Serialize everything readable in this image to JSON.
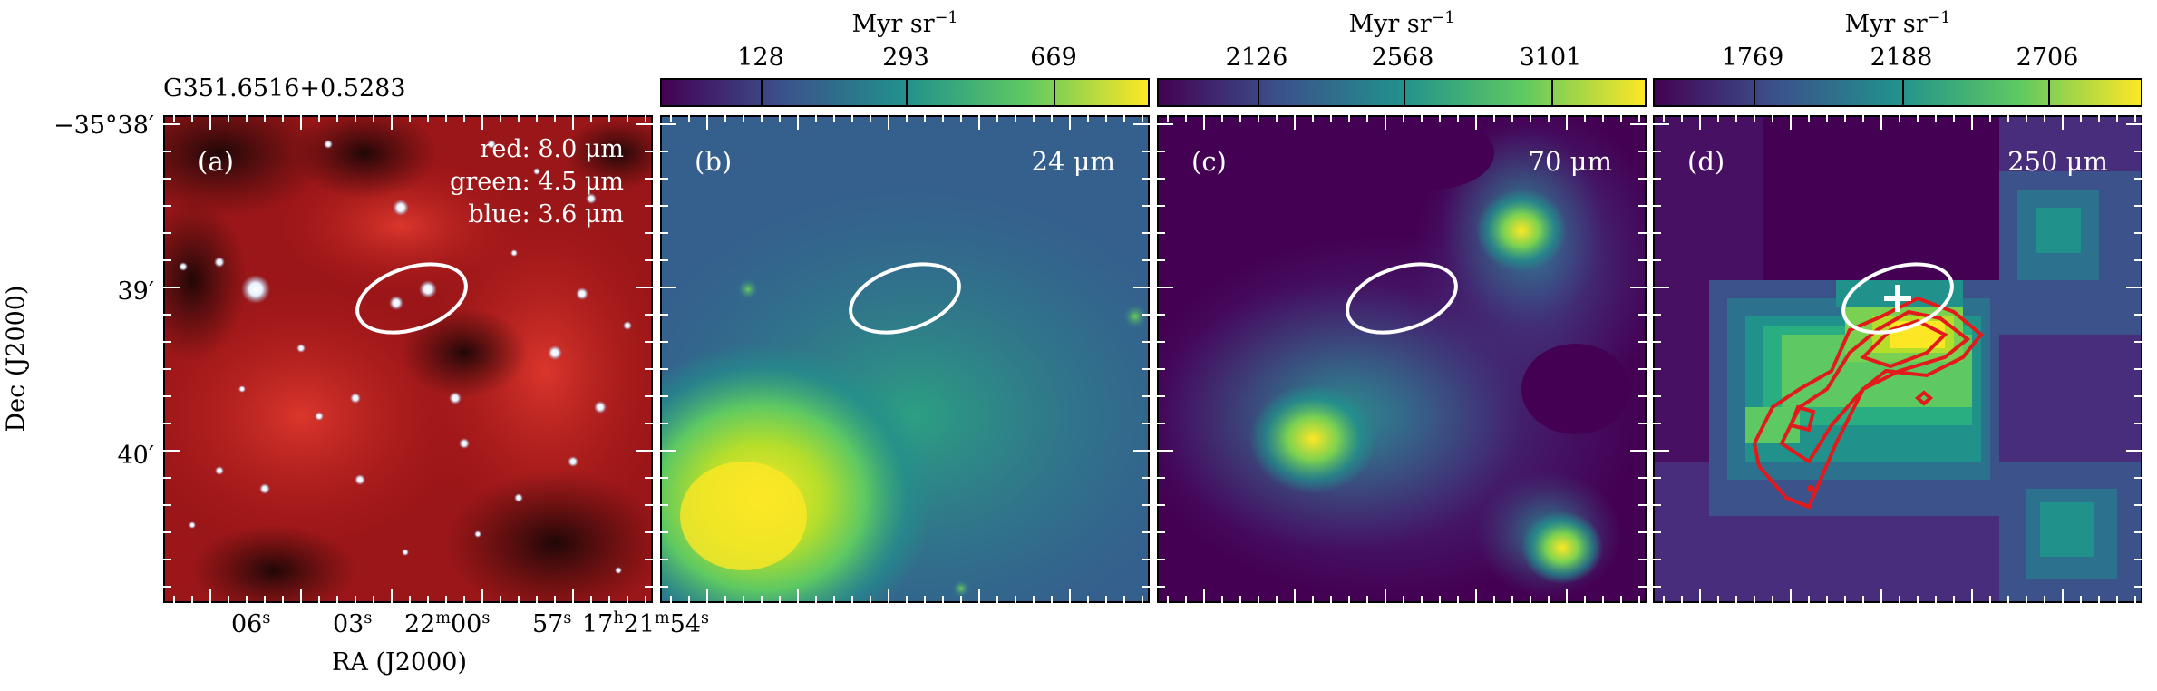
{
  "source_name": "G351.6516+0.5283",
  "axes": {
    "ylabel": "Dec (J2000)",
    "xlabel": "RA (J2000)",
    "yticks": [
      "−35°38′",
      "39′",
      "40′"
    ],
    "xticks": [
      {
        "main": "06",
        "sup": "s"
      },
      {
        "main": "03",
        "sup": "s"
      },
      {
        "main": "22",
        "sup": "m",
        "tail": "00",
        "tail_sup": "s"
      },
      {
        "main": "57",
        "sup": "s"
      },
      {
        "main": "17",
        "sup": "h",
        "tail": "21",
        "tail_sup": "m",
        "tail2": "54",
        "tail2_sup": "s"
      }
    ]
  },
  "panels": [
    {
      "label": "(a)",
      "legend": [
        "red: 8.0 μm",
        "green: 4.5 μm",
        "blue: 3.6 μm"
      ]
    },
    {
      "label": "(b)",
      "wavelength": "24 μm",
      "colorbar": {
        "title": "Myr sr",
        "title_sup": "−1",
        "ticks": [
          "128",
          "293",
          "669"
        ]
      }
    },
    {
      "label": "(c)",
      "wavelength": "70 μm",
      "colorbar": {
        "title": "Myr sr",
        "title_sup": "−1",
        "ticks": [
          "2126",
          "2568",
          "3101"
        ]
      }
    },
    {
      "label": "(d)",
      "wavelength": "250 μm",
      "colorbar": {
        "title": "Myr sr",
        "title_sup": "−1",
        "ticks": [
          "1769",
          "2188",
          "2706"
        ]
      }
    }
  ],
  "colors": {
    "viridis_low": "#440154",
    "viridis_mid": "#21918c",
    "viridis_high": "#fde725",
    "ellipse": "#ffffff",
    "contour": "#e31a1c"
  }
}
